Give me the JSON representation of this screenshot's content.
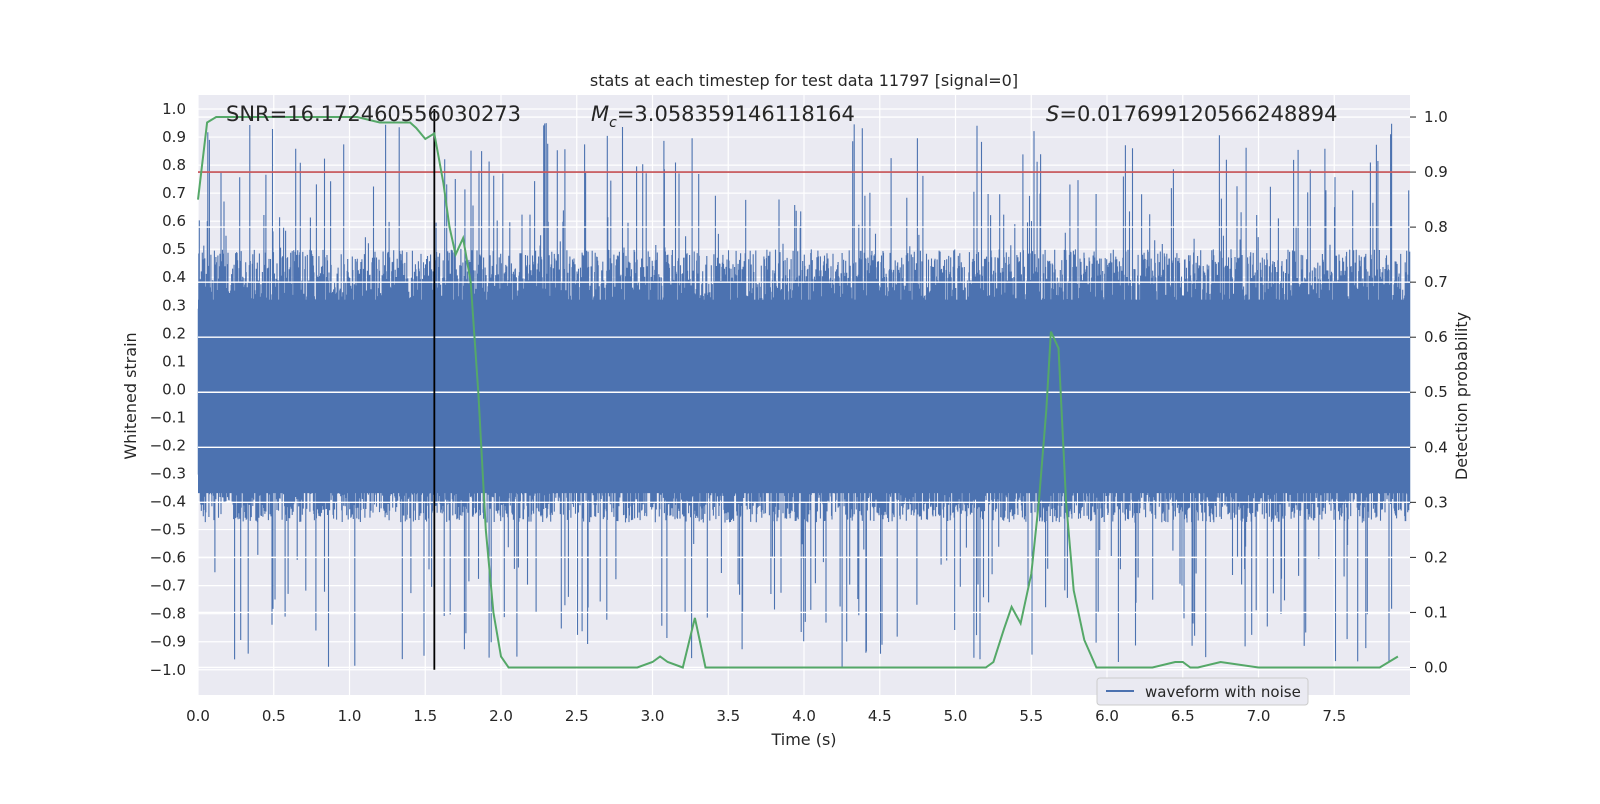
{
  "chart_data": {
    "type": "line",
    "title": "stats at each timestep for test data 11797 [signal=0]",
    "xlabel": "Time (s)",
    "ylabel_left": "Whitened strain",
    "ylabel_right": "Detection probability",
    "xlim": [
      0.0,
      8.0
    ],
    "ylim_left": [
      -1.09,
      1.05
    ],
    "ylim_right": [
      -0.05,
      1.04
    ],
    "xticks": [
      "0.0",
      "0.5",
      "1.0",
      "1.5",
      "2.0",
      "2.5",
      "3.0",
      "3.5",
      "4.0",
      "4.5",
      "5.0",
      "5.5",
      "6.0",
      "6.5",
      "7.0",
      "7.5"
    ],
    "yticks_left": [
      "1.0",
      "0.9",
      "0.8",
      "0.7",
      "0.6",
      "0.5",
      "0.4",
      "0.3",
      "0.2",
      "0.1",
      "0.0",
      "-0.1",
      "-0.2",
      "-0.3",
      "-0.4",
      "-0.5",
      "-0.6",
      "-0.7",
      "-0.8",
      "-0.9",
      "-1.0"
    ],
    "yticks_right": [
      "1.0",
      "0.9",
      "0.8",
      "0.7",
      "0.6",
      "0.5",
      "0.4",
      "0.3",
      "0.2",
      "0.1",
      "0.0"
    ],
    "grid": true,
    "legend_placement": "lower-right",
    "stats": {
      "snr": "SNR=16.172460556030273",
      "mc_symbol": "M",
      "mc_sub": "c",
      "mc_value": "=3.058359146118164",
      "s_symbol": "S",
      "s_value": "=0.017699120566248894"
    },
    "threshold": {
      "value": 0.9,
      "axis": "right",
      "color": "#c44e52"
    },
    "marker_line": {
      "x": 1.56,
      "y_range": [
        -1.0,
        1.0
      ],
      "color": "#000000"
    },
    "series": [
      {
        "name": "waveform with noise",
        "axis": "left",
        "color": "#4c72b0",
        "envelope": {
          "typical_peak": 0.5,
          "max_peak": 0.95,
          "min_trough": -1.0
        }
      },
      {
        "axis": "right",
        "color": "#55a868",
        "x": [
          0.0,
          0.06,
          0.12,
          0.3,
          0.6,
          0.9,
          1.05,
          1.2,
          1.35,
          1.4,
          1.44,
          1.5,
          1.56,
          1.62,
          1.66,
          1.7,
          1.75,
          1.8,
          1.85,
          1.9,
          1.95,
          2.0,
          2.05,
          2.15,
          2.25,
          2.35,
          2.45,
          2.55,
          2.7,
          2.9,
          3.0,
          3.05,
          3.1,
          3.2,
          3.28,
          3.35,
          3.43,
          3.5,
          3.55,
          3.7,
          3.9,
          4.1,
          4.3,
          4.5,
          4.7,
          4.9,
          5.0,
          5.1,
          5.2,
          5.25,
          5.32,
          5.37,
          5.43,
          5.5,
          5.55,
          5.6,
          5.63,
          5.68,
          5.73,
          5.78,
          5.85,
          5.93,
          6.0,
          6.1,
          6.3,
          6.45,
          6.5,
          6.55,
          6.6,
          6.75,
          7.0,
          7.2,
          7.4,
          7.6,
          7.8,
          7.92
        ],
        "y": [
          0.85,
          0.99,
          1.0,
          1.0,
          1.0,
          1.0,
          1.0,
          0.99,
          0.99,
          0.99,
          0.98,
          0.96,
          0.97,
          0.88,
          0.8,
          0.75,
          0.78,
          0.7,
          0.5,
          0.25,
          0.1,
          0.02,
          0.0,
          0.0,
          0.0,
          0.0,
          0.0,
          0.0,
          0.0,
          0.0,
          0.01,
          0.02,
          0.01,
          0.0,
          0.09,
          0.0,
          0.0,
          0.0,
          0.0,
          0.0,
          0.0,
          0.0,
          0.0,
          0.0,
          0.0,
          0.0,
          0.0,
          0.0,
          0.0,
          0.01,
          0.07,
          0.11,
          0.08,
          0.17,
          0.3,
          0.47,
          0.61,
          0.58,
          0.3,
          0.14,
          0.05,
          0.0,
          0.0,
          0.0,
          0.0,
          0.01,
          0.01,
          0.0,
          0.0,
          0.01,
          0.0,
          0.0,
          0.0,
          0.0,
          0.0,
          0.02
        ]
      }
    ]
  }
}
